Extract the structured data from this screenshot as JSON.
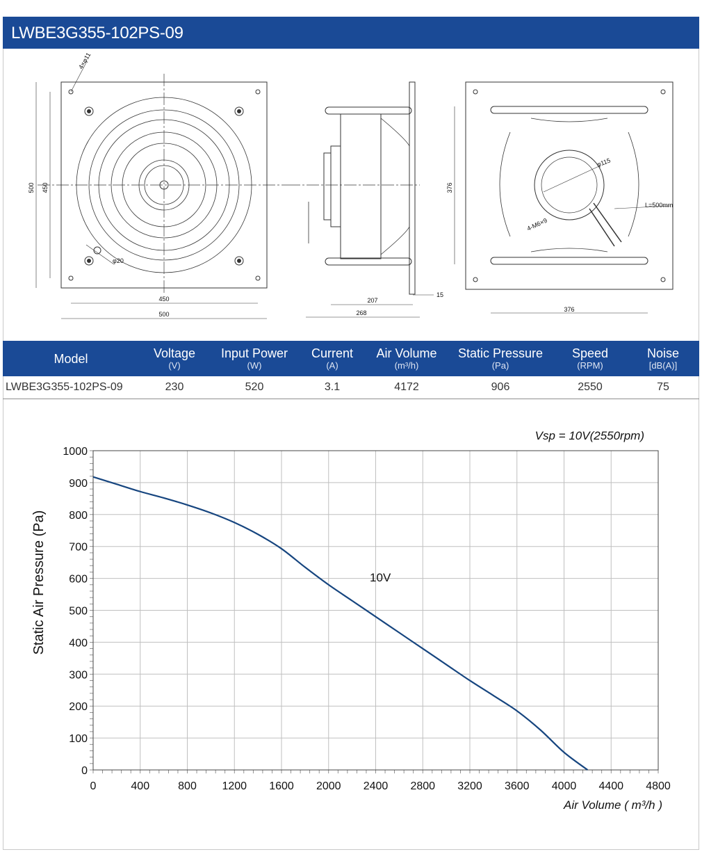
{
  "header": {
    "title": "LWBE3G355-102PS-09"
  },
  "drawings": {
    "front": {
      "dim_overall": "500",
      "dim_mount": "450",
      "hole_label": "4×φ11",
      "center_hole_label": "φ20"
    },
    "side": {
      "dim_depth": "268",
      "dim_inner": "207",
      "dim_plate": "15"
    },
    "back": {
      "dim_rail": "376",
      "dim_rail_h": "376",
      "bolt_circle": "φ115",
      "cable_label": "L=500mm",
      "bolt_label": "4-M6×9"
    }
  },
  "spec_table": {
    "columns": [
      {
        "label": "Model",
        "unit": ""
      },
      {
        "label": "Voltage",
        "unit": "(V)"
      },
      {
        "label": "Input Power",
        "unit": "(W)"
      },
      {
        "label": "Current",
        "unit": "(A)"
      },
      {
        "label": "Air Volume",
        "unit": "(m³/h)"
      },
      {
        "label": "Static Pressure",
        "unit": "(Pa)"
      },
      {
        "label": "Speed",
        "unit": "(RPM)"
      },
      {
        "label": "Noise",
        "unit": "[dB(A)]"
      }
    ],
    "rows": [
      [
        "LWBE3G355-102PS-09",
        "230",
        "520",
        "3.1",
        "4172",
        "906",
        "2550",
        "75"
      ]
    ]
  },
  "chart_data": {
    "type": "line",
    "title": "",
    "annotation": "Vsp = 10V(2550rpm)",
    "xlabel": "Air Volume ( m³/h )",
    "ylabel": "Static Air Pressure  (Pa)",
    "xlim": [
      0,
      4800
    ],
    "ylim": [
      0,
      1000
    ],
    "xticks": [
      "0",
      "400",
      "800",
      "1200",
      "1600",
      "2000",
      "2400",
      "2800",
      "3200",
      "3600",
      "4000",
      "4400",
      "4800"
    ],
    "yticks": [
      "0",
      "100",
      "200",
      "300",
      "400",
      "500",
      "600",
      "700",
      "800",
      "900",
      "1000"
    ],
    "grid": true,
    "line_color": "#16457f",
    "series": [
      {
        "name": "10V",
        "x": [
          0,
          200,
          400,
          600,
          800,
          1000,
          1200,
          1400,
          1600,
          1800,
          2000,
          2200,
          2400,
          2600,
          2800,
          3000,
          3200,
          3400,
          3600,
          3800,
          4000,
          4200
        ],
        "y": [
          918,
          895,
          872,
          852,
          830,
          805,
          775,
          738,
          693,
          635,
          580,
          530,
          480,
          430,
          380,
          330,
          280,
          233,
          185,
          125,
          55,
          0
        ]
      }
    ],
    "series_label_pos": {
      "x": 2350,
      "y": 590
    }
  }
}
